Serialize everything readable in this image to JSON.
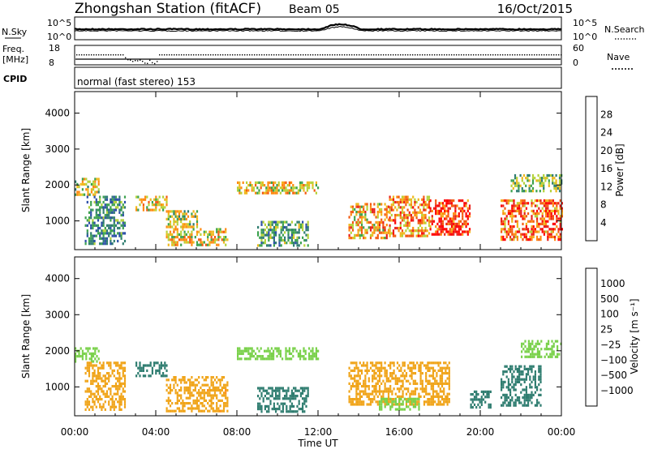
{
  "header": {
    "station": "Zhongshan Station (fitACF)",
    "beam": "Beam 05",
    "date": "16/Oct/2015"
  },
  "status_panel": {
    "nsky_label": "N.Sky",
    "nsky_ticks": [
      "10^5",
      "10^0"
    ],
    "nsearch_label": "N.Search",
    "nsearch_ticks": [
      "10^5",
      "10^0"
    ],
    "freq_label_line1": "Freq.",
    "freq_label_line2": "[MHz]",
    "freq_ticks": [
      "18",
      "8"
    ],
    "nave_label": "Nave",
    "nave_ticks": [
      "60",
      "0"
    ],
    "cpid_label": "CPID",
    "cpid_text": "normal (fast stereo) 153"
  },
  "colors": {
    "power_scale": [
      "#1418ff",
      "#2b4fa7",
      "#2f7d70",
      "#3ca24e",
      "#b5d23a",
      "#f0b81e",
      "#ff8a12",
      "#f35a12",
      "#e8201a",
      "#ff0000"
    ],
    "velocity_scale": [
      "#1f3fd6",
      "#2f5fa0",
      "#2f7d70",
      "#3b9e4a",
      "#7ad14b",
      "#c8c8c0",
      "#f0a418",
      "#ff8a12",
      "#f04a14",
      "#e81a1a"
    ]
  },
  "chart_data": [
    {
      "type": "heatmap",
      "panel": "power",
      "ylabel": "Slant Range [km]",
      "yticks": [
        "4000",
        "3000",
        "2000",
        "1000"
      ],
      "ylim": [
        200,
        4600
      ],
      "xticks": [
        "00:00",
        "04:00",
        "08:00",
        "12:00",
        "16:00",
        "20:00",
        "00:00"
      ],
      "xlim": [
        0,
        24
      ],
      "colorbar_label": "Power [dB]",
      "colorbar_ticks": [
        "28",
        "24",
        "20",
        "16",
        "12",
        "8",
        "4"
      ],
      "clim": [
        0,
        30
      ],
      "echo_regions": [
        {
          "t": [
            0.0,
            1.2
          ],
          "range": [
            1700,
            2200
          ],
          "value": 14
        },
        {
          "t": [
            0.5,
            2.5
          ],
          "range": [
            400,
            1700
          ],
          "value": 8
        },
        {
          "t": [
            3.0,
            4.5
          ],
          "range": [
            1300,
            1700
          ],
          "value": 16
        },
        {
          "t": [
            4.5,
            6.0
          ],
          "range": [
            800,
            1300
          ],
          "value": 14
        },
        {
          "t": [
            4.5,
            7.5
          ],
          "range": [
            300,
            800
          ],
          "value": 16
        },
        {
          "t": [
            8.0,
            12.0
          ],
          "range": [
            1800,
            2100
          ],
          "value": 16
        },
        {
          "t": [
            9.0,
            11.5
          ],
          "range": [
            300,
            1000
          ],
          "value": 10
        },
        {
          "t": [
            13.5,
            15.5
          ],
          "range": [
            500,
            1500
          ],
          "value": 18
        },
        {
          "t": [
            15.5,
            17.5
          ],
          "range": [
            600,
            1700
          ],
          "value": 20
        },
        {
          "t": [
            17.5,
            19.5
          ],
          "range": [
            600,
            1600
          ],
          "value": 26
        },
        {
          "t": [
            21.0,
            24.0
          ],
          "range": [
            500,
            1600
          ],
          "value": 22
        },
        {
          "t": [
            21.5,
            24.0
          ],
          "range": [
            1800,
            2300
          ],
          "value": 12
        }
      ]
    },
    {
      "type": "heatmap",
      "panel": "velocity",
      "ylabel": "Slant Range [km]",
      "yticks": [
        "4000",
        "3000",
        "2000",
        "1000"
      ],
      "ylim": [
        200,
        4600
      ],
      "xticks": [
        "00:00",
        "04:00",
        "08:00",
        "12:00",
        "16:00",
        "20:00",
        "00:00"
      ],
      "xlim": [
        0,
        24
      ],
      "xlabel": "Time UT",
      "colorbar_label": "Velocity [m s⁻¹]",
      "colorbar_ticks": [
        "1000",
        "500",
        "100",
        "25",
        "−25",
        "−100",
        "−500",
        "−1000"
      ],
      "clim": [
        -1200,
        1200
      ],
      "echo_regions": [
        {
          "t": [
            0.0,
            1.2
          ],
          "range": [
            1700,
            2100
          ],
          "value": 0
        },
        {
          "t": [
            0.5,
            2.5
          ],
          "range": [
            400,
            1700
          ],
          "value": -300
        },
        {
          "t": [
            3.0,
            4.5
          ],
          "range": [
            1300,
            1700
          ],
          "value": 200
        },
        {
          "t": [
            4.5,
            7.5
          ],
          "range": [
            300,
            1300
          ],
          "value": -400
        },
        {
          "t": [
            8.0,
            12.0
          ],
          "range": [
            1800,
            2100
          ],
          "value": 0
        },
        {
          "t": [
            9.0,
            11.5
          ],
          "range": [
            300,
            1000
          ],
          "value": 150
        },
        {
          "t": [
            13.5,
            18.5
          ],
          "range": [
            500,
            1700
          ],
          "value": -300
        },
        {
          "t": [
            15.0,
            17.0
          ],
          "range": [
            400,
            700
          ],
          "value": 0
        },
        {
          "t": [
            19.5,
            20.5
          ],
          "range": [
            400,
            900
          ],
          "value": 150
        },
        {
          "t": [
            21.0,
            23.0
          ],
          "range": [
            500,
            1600
          ],
          "value": 200
        },
        {
          "t": [
            22.0,
            24.0
          ],
          "range": [
            1800,
            2300
          ],
          "value": 0
        }
      ]
    }
  ]
}
